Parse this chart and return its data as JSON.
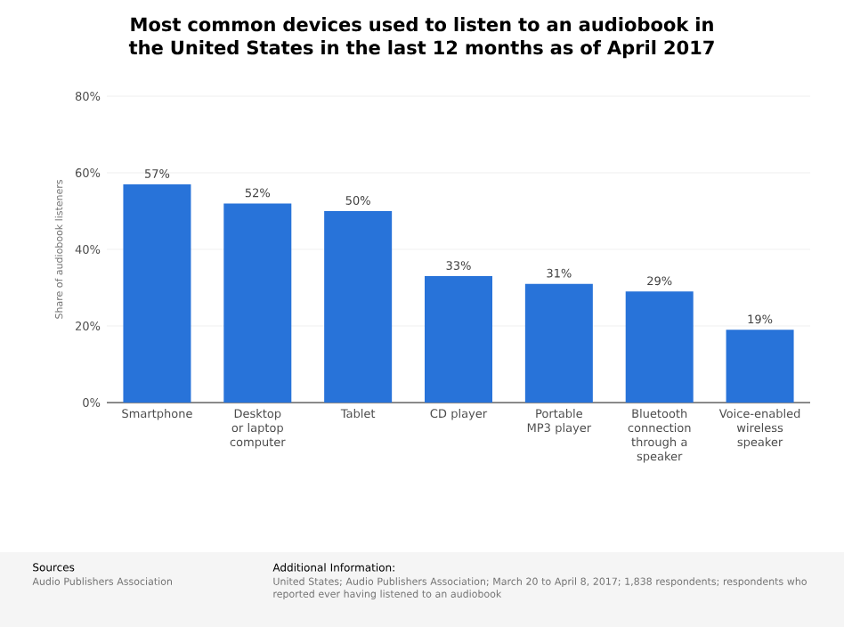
{
  "chart_data": {
    "type": "bar",
    "title": "Most common devices used to listen to an audiobook in the United States in the last 12 months as of April 2017",
    "ylabel": "Share of audiobook listeners",
    "categories": [
      "Smartphone",
      "Desktop or laptop computer",
      "Tablet",
      "CD player",
      "Portable MP3 player",
      "Bluetooth connection through a speaker",
      "Voice-enabled wireless speaker"
    ],
    "values": [
      57,
      52,
      50,
      33,
      31,
      29,
      19
    ],
    "value_labels": [
      "57%",
      "52%",
      "50%",
      "33%",
      "31%",
      "29%",
      "19%"
    ],
    "color": "#2873d9",
    "ylim": [
      0,
      80
    ],
    "yticks": [
      {
        "value": 0,
        "label": "0%"
      },
      {
        "value": 20,
        "label": "20%"
      },
      {
        "value": 40,
        "label": "40%"
      },
      {
        "value": 60,
        "label": "60%"
      },
      {
        "value": 80,
        "label": "80%"
      }
    ],
    "grid": "y",
    "annotations": [
      "Sources",
      "Audio Publishers Association",
      "Additional Information:",
      "United States; Audio Publishers Association; March 20 to April 8, 2017; 1,838 respondents; respondents who reported ever having listened to an audiobook"
    ]
  }
}
